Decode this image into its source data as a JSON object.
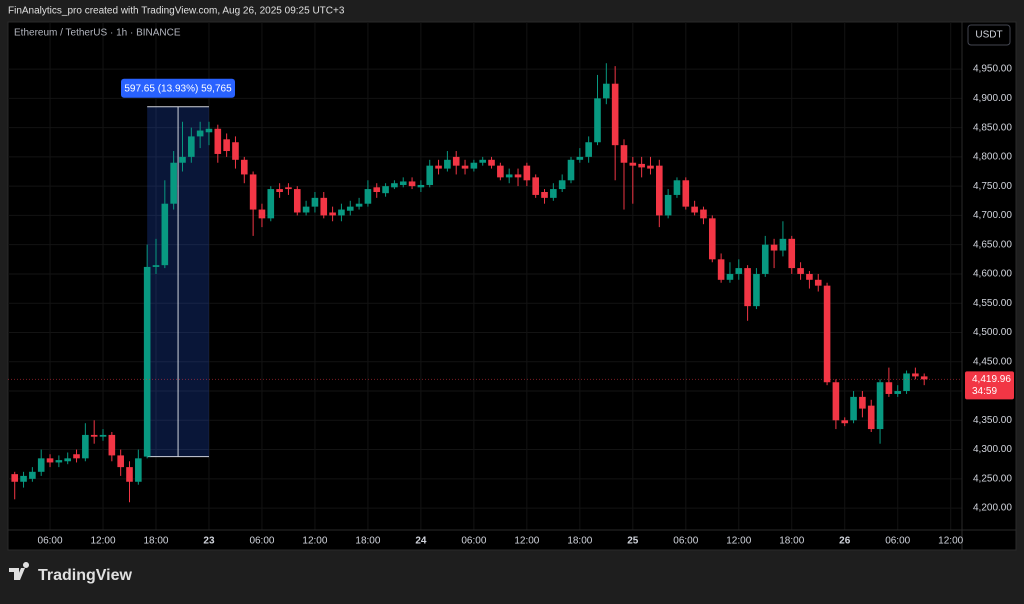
{
  "header": {
    "credit": "FinAnalytics_pro created with TradingView.com, Aug 26, 2025 09:25 UTC+3",
    "brand": "TradingView"
  },
  "chart_data": {
    "type": "candlestick",
    "title": "Ethereum / TetherUS · 1h · BINANCE",
    "currency_button": "USDT",
    "up_color": "#089981",
    "down_color": "#f23645",
    "grid": true,
    "categories": [
      null,
      null,
      null,
      null,
      "06:00",
      null,
      null,
      null,
      null,
      null,
      "12:00",
      null,
      null,
      null,
      null,
      null,
      "18:00",
      null,
      null,
      null,
      null,
      null,
      "23",
      null,
      null,
      null,
      null,
      null,
      "06:00",
      null,
      null,
      null,
      null,
      null,
      "12:00",
      null,
      null,
      null,
      null,
      null,
      "18:00",
      null,
      null,
      null,
      null,
      null,
      "24",
      null,
      null,
      null,
      null,
      null,
      "06:00",
      null,
      null,
      null,
      null,
      null,
      "12:00",
      null,
      null,
      null,
      null,
      null,
      "18:00",
      null,
      null,
      null,
      null,
      null,
      "25",
      null,
      null,
      null,
      null,
      null,
      "06:00",
      null,
      null,
      null,
      null,
      null,
      "12:00",
      null,
      null,
      null,
      null,
      null,
      "18:00",
      null,
      null,
      null,
      null,
      null,
      "26",
      null,
      null,
      null,
      null,
      null,
      "06:00",
      null,
      null,
      null,
      null,
      null,
      "12:00"
    ],
    "open": [
      4258,
      4245,
      4250,
      4262,
      4285,
      4278,
      4280,
      4292,
      4285,
      4325,
      4322,
      4325,
      4290,
      4270,
      4245,
      4288,
      4612,
      4615,
      4720,
      4790,
      4800,
      4835,
      4842,
      4848,
      4830,
      4825,
      4795,
      4770,
      4710,
      4695,
      4745,
      4748,
      4745,
      4705,
      4715,
      4730,
      4705,
      4700,
      4708,
      4715,
      4720,
      4748,
      4738,
      4748,
      4752,
      4758,
      4748,
      4752,
      4785,
      4780,
      4800,
      4785,
      4780,
      4790,
      4795,
      4785,
      4765,
      4770,
      4785,
      4765,
      4740,
      4730,
      4745,
      4760,
      4795,
      4800,
      4825,
      4900,
      4925,
      4820,
      4790,
      4788,
      4785,
      4785,
      4700,
      4735,
      4760,
      4715,
      4710,
      4695,
      4625,
      4590,
      4600,
      4610,
      4545,
      4600,
      4650,
      4640,
      4660,
      4610,
      4600,
      4590,
      4580,
      4415,
      4350,
      4350,
      4390,
      4375,
      4335,
      4415,
      4395,
      4400,
      4430,
      4425,
      null,
      null,
      null
    ],
    "high": [
      4262,
      4262,
      4270,
      4300,
      4292,
      4290,
      4295,
      4300,
      4345,
      4350,
      4335,
      4330,
      4300,
      4280,
      4300,
      4650,
      4660,
      4760,
      4810,
      4860,
      4850,
      4860,
      4860,
      4855,
      4840,
      4835,
      4800,
      4775,
      4720,
      4750,
      4755,
      4755,
      4750,
      4725,
      4740,
      4740,
      4715,
      4720,
      4725,
      4730,
      4760,
      4755,
      4755,
      4760,
      4765,
      4765,
      4760,
      4795,
      4795,
      4810,
      4810,
      4795,
      4795,
      4800,
      4800,
      4790,
      4780,
      4780,
      4790,
      4770,
      4745,
      4755,
      4770,
      4800,
      4815,
      4835,
      4940,
      4960,
      4955,
      4830,
      4800,
      4800,
      4800,
      4795,
      4745,
      4765,
      4765,
      4725,
      4715,
      4700,
      4635,
      4620,
      4625,
      4615,
      4610,
      4665,
      4660,
      4690,
      4665,
      4620,
      4605,
      4600,
      4585,
      4420,
      4355,
      4400,
      4400,
      4385,
      4420,
      4440,
      4410,
      4435,
      4440,
      4430,
      null,
      null,
      null
    ],
    "low": [
      4215,
      4235,
      4245,
      4255,
      4270,
      4270,
      4275,
      4278,
      4280,
      4310,
      4315,
      4280,
      4255,
      4210,
      4240,
      4285,
      4600,
      4610,
      4710,
      4775,
      4790,
      4815,
      4820,
      4790,
      4800,
      4780,
      4755,
      4665,
      4680,
      4690,
      4730,
      4735,
      4700,
      4700,
      4705,
      4695,
      4690,
      4690,
      4700,
      4710,
      4715,
      4730,
      4732,
      4745,
      4748,
      4745,
      4740,
      4748,
      4770,
      4775,
      4770,
      4770,
      4775,
      4785,
      4780,
      4760,
      4755,
      4750,
      4750,
      4730,
      4720,
      4725,
      4740,
      4755,
      4790,
      4790,
      4820,
      4890,
      4760,
      4710,
      4720,
      4765,
      4770,
      4680,
      4695,
      4730,
      4710,
      4700,
      4685,
      4620,
      4585,
      4585,
      4590,
      4520,
      4540,
      4595,
      4610,
      4630,
      4600,
      4590,
      4575,
      4570,
      4410,
      4335,
      4340,
      4345,
      4355,
      4330,
      4310,
      4390,
      4390,
      4395,
      4420,
      4410,
      null,
      null,
      null
    ],
    "close": [
      4245,
      4255,
      4262,
      4285,
      4278,
      4282,
      4285,
      4285,
      4325,
      4322,
      4325,
      4290,
      4270,
      4245,
      4285,
      4612,
      4615,
      4720,
      4790,
      4800,
      4835,
      4845,
      4848,
      4805,
      4810,
      4795,
      4770,
      4710,
      4695,
      4745,
      4740,
      4745,
      4705,
      4715,
      4730,
      4700,
      4700,
      4710,
      4715,
      4720,
      4745,
      4740,
      4750,
      4755,
      4758,
      4750,
      4752,
      4785,
      4780,
      4795,
      4785,
      4780,
      4790,
      4795,
      4785,
      4765,
      4770,
      4765,
      4760,
      4735,
      4730,
      4745,
      4760,
      4795,
      4800,
      4825,
      4900,
      4925,
      4820,
      4790,
      4785,
      4782,
      4780,
      4700,
      4735,
      4760,
      4715,
      4705,
      4695,
      4625,
      4590,
      4600,
      4610,
      4545,
      4600,
      4650,
      4640,
      4660,
      4610,
      4600,
      4590,
      4580,
      4415,
      4350,
      4345,
      4390,
      4370,
      4335,
      4415,
      4395,
      4400,
      4430,
      4425,
      4419.96,
      null,
      null,
      null
    ],
    "ylim": [
      4166,
      5027
    ],
    "yticks": [
      {
        "value": 4200,
        "label": "4,200.00"
      },
      {
        "value": 4250,
        "label": "4,250.00"
      },
      {
        "value": 4300,
        "label": "4,300.00"
      },
      {
        "value": 4350,
        "label": "4,350.00"
      },
      {
        "value": 4400,
        "label": "4,400.00"
      },
      {
        "value": 4450,
        "label": "4,450.00"
      },
      {
        "value": 4500,
        "label": "4,500.00"
      },
      {
        "value": 4550,
        "label": "4,550.00"
      },
      {
        "value": 4600,
        "label": "4,600.00"
      },
      {
        "value": 4650,
        "label": "4,650.00"
      },
      {
        "value": 4700,
        "label": "4,700.00"
      },
      {
        "value": 4750,
        "label": "4,750.00"
      },
      {
        "value": 4800,
        "label": "4,800.00"
      },
      {
        "value": 4850,
        "label": "4,850.00"
      },
      {
        "value": 4900,
        "label": "4,900.00"
      },
      {
        "value": 4950,
        "label": "4,950.00"
      }
    ],
    "last_price": {
      "value": 4419.96,
      "label": "4,419.96"
    },
    "countdown": "34:59",
    "measure": {
      "label": "597.65 (13.93%) 59,765",
      "from": 4288,
      "to": 4885.65
    }
  }
}
